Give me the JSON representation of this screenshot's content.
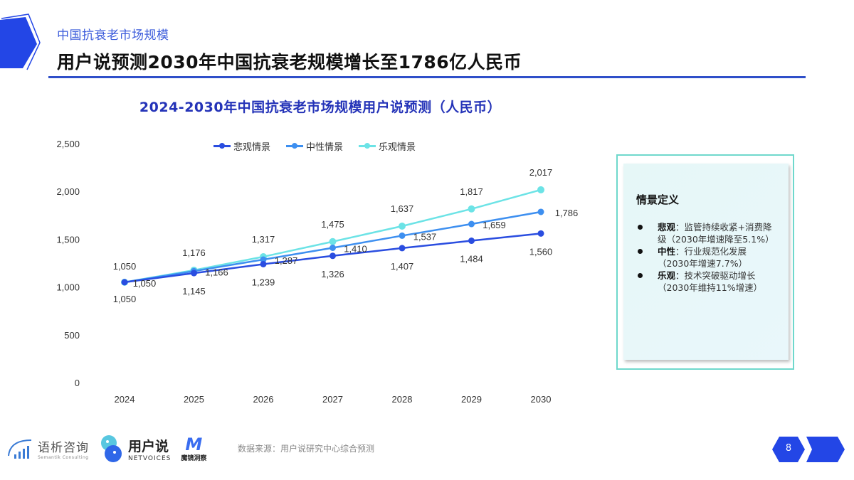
{
  "header": {
    "section_label": "中国抗衰老市场规模",
    "page_title": "用户说预测2030年中国抗衰老规模增长至1786亿人民币"
  },
  "chart_data": {
    "type": "line",
    "title": "2024-2030年中国抗衰老市场规模用户说预测（人民币）",
    "xlabel": "",
    "ylabel": "",
    "categories": [
      "2024",
      "2025",
      "2026",
      "2027",
      "2028",
      "2029",
      "2030"
    ],
    "y_ticks": [
      "0",
      "500",
      "1,000",
      "1,500",
      "2,000",
      "2,500"
    ],
    "ylim": [
      0,
      2500
    ],
    "grid": false,
    "legend_position": "top",
    "series": [
      {
        "name": "悲观情景",
        "color": "#2a4de0",
        "values": [
          1050,
          1145,
          1239,
          1326,
          1407,
          1484,
          1560
        ],
        "labels": [
          "1,050",
          "1,145",
          "1,239",
          "1,326",
          "1,407",
          "1,484",
          "1,560"
        ]
      },
      {
        "name": "中性情景",
        "color": "#3d8ff0",
        "values": [
          1050,
          1166,
          1287,
          1410,
          1537,
          1659,
          1786
        ],
        "labels": [
          "1,050",
          "1,166",
          "1,287",
          "1,410",
          "1,537",
          "1,659",
          "1,786"
        ]
      },
      {
        "name": "乐观情景",
        "color": "#6ce3e6",
        "values": [
          1050,
          1176,
          1317,
          1475,
          1637,
          1817,
          2017
        ],
        "labels": [
          "1,050",
          "1,176",
          "1,317",
          "1,475",
          "1,637",
          "1,817",
          "2,017"
        ]
      }
    ]
  },
  "side_panel": {
    "title": "情景定义",
    "items": [
      {
        "term": "悲观",
        "sep": "：",
        "desc": "监管持续收紧+消费降级（2030年增速降至5.1%）"
      },
      {
        "term": "中性",
        "sep": "：",
        "desc": "行业规范化发展（2030年增速7.7%）"
      },
      {
        "term": "乐观",
        "sep": "：",
        "desc": "技术突破驱动增长（2030年维持11%增速）"
      }
    ]
  },
  "footer": {
    "logo1_name": "语析咨询",
    "logo1_sub": "Semantik Consulting",
    "logo2_name": "用户说",
    "logo2_sub": "NETVOICES",
    "logo3_mark": "M",
    "logo3_name": "魔镜洞察",
    "source": "数据来源：用户说研究中心综合预测",
    "page_number": "8"
  }
}
